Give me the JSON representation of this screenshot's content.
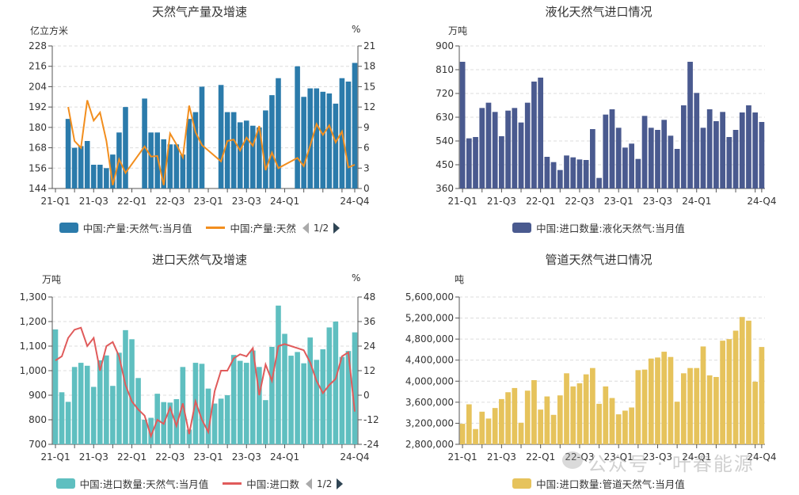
{
  "chart_data": [
    {
      "type": "bar+line",
      "title": "天然气产量及增速",
      "ylabel_left": "亿立方米",
      "ylabel_right": "%",
      "ylim_left": [
        144,
        228
      ],
      "yticks_left": [
        "144",
        "156",
        "168",
        "180",
        "192",
        "204",
        "216",
        "228"
      ],
      "ylim_right": [
        0,
        21
      ],
      "yticks_right": [
        "0",
        "3",
        "6",
        "9",
        "12",
        "15",
        "18",
        "21"
      ],
      "xtick_labels": [
        "21-Q1",
        "21-Q3",
        "22-Q1",
        "22-Q3",
        "23-Q1",
        "23-Q3",
        "24-Q1",
        "24-Q4"
      ],
      "slots": 48,
      "bar_slots": [
        2,
        3,
        4,
        5,
        6,
        7,
        8,
        9,
        10,
        11,
        14,
        15,
        16,
        17,
        18,
        19,
        20,
        21,
        22,
        23,
        26,
        27,
        28,
        29,
        30,
        31,
        32,
        33,
        34,
        35,
        38,
        39,
        40,
        41,
        42,
        43,
        44,
        45,
        46,
        47
      ],
      "series": [
        {
          "name": "中国:产量:天然气:当月值",
          "kind": "bar",
          "color": "#2b7bab",
          "values": [
            185,
            168,
            169,
            172,
            158,
            158,
            156,
            164,
            177,
            192,
            197,
            177,
            177,
            173,
            170,
            170,
            164,
            185,
            189,
            204,
            205,
            189,
            189,
            183,
            184,
            181,
            180,
            190,
            199,
            209,
            216,
            198,
            203,
            203,
            201,
            200,
            194,
            209,
            207,
            218
          ]
        },
        {
          "name": "中国:产量:天然",
          "kind": "line",
          "color": "#f28e1e",
          "values": [
            12,
            7,
            6,
            13,
            10,
            11.2,
            7,
            0.5,
            4.3,
            2.3,
            6.2,
            4.7,
            4.8,
            0.5,
            8.1,
            6.5,
            4.6,
            12.2,
            8.3,
            6.4,
            4,
            7,
            7.2,
            5.6,
            7.5,
            6.3,
            9.2,
            2.7,
            5.3,
            3,
            4.5,
            3.3,
            6.3,
            9.5,
            7.9,
            9.3,
            6.8,
            8.4,
            3.1,
            3.5
          ]
        }
      ],
      "legend_page": "1/2"
    },
    {
      "type": "bar",
      "title": "液化天然气进口情况",
      "ylabel": "万吨",
      "ylim": [
        360,
        900
      ],
      "yticks": [
        "360",
        "450",
        "540",
        "630",
        "720",
        "810",
        "900"
      ],
      "xtick_labels": [
        "21-Q1",
        "21-Q3",
        "22-Q1",
        "22-Q3",
        "23-Q1",
        "23-Q3",
        "24-Q1",
        "24-Q4"
      ],
      "series": [
        {
          "name": "中国:进口数量:液化天然气:当月值",
          "color": "#4a5a8f",
          "values": [
            840,
            550,
            555,
            665,
            685,
            650,
            558,
            655,
            665,
            610,
            685,
            765,
            780,
            480,
            460,
            430,
            485,
            478,
            470,
            468,
            585,
            400,
            640,
            660,
            590,
            515,
            530,
            472,
            635,
            590,
            582,
            620,
            560,
            510,
            675,
            840,
            722,
            590,
            660,
            615,
            650,
            555,
            582,
            648,
            675,
            648,
            612
          ]
        }
      ]
    },
    {
      "type": "bar+line",
      "title": "进口天然气及增速",
      "ylabel_left": "万吨",
      "ylabel_right": "%",
      "ylim_left": [
        700,
        1300
      ],
      "yticks_left": [
        "700",
        "800",
        "900",
        "1,000",
        "1,100",
        "1,200",
        "1,300"
      ],
      "ylim_right": [
        -24,
        48
      ],
      "yticks_right": [
        "-24",
        "-12",
        "0",
        "12",
        "24",
        "36",
        "48"
      ],
      "xtick_labels": [
        "21-Q1",
        "21-Q3",
        "22-Q1",
        "22-Q3",
        "23-Q1",
        "23-Q3",
        "24-Q1",
        "24-Q4"
      ],
      "series": [
        {
          "name": "中国:进口数量:天然气:当月值",
          "kind": "bar",
          "color": "#5fbfc0",
          "values": [
            1168,
            912,
            873,
            1015,
            1032,
            1020,
            934,
            1042,
            1062,
            938,
            1073,
            1165,
            1128,
            970,
            800,
            808,
            906,
            872,
            870,
            884,
            1015,
            760,
            1032,
            1028,
            927,
            866,
            886,
            900,
            1064,
            1040,
            1032,
            1082,
            1015,
            880,
            1097,
            1265,
            1150,
            1061,
            1076,
            1030,
            1135,
            1044,
            1087,
            1176,
            1200,
            1056,
            1080,
            1156
          ]
        },
        {
          "name": "中国:进口数",
          "kind": "line",
          "color": "#e05b5b",
          "values": [
            17,
            19,
            28,
            32,
            33,
            24,
            28,
            12,
            24,
            26,
            19,
            5,
            -3,
            -7,
            -10,
            -20,
            -12,
            -14,
            -6,
            -15,
            -4,
            -19,
            -3,
            -12,
            -18,
            2,
            12,
            12,
            18,
            20,
            19,
            23,
            0,
            15,
            7,
            24,
            25,
            24,
            23,
            22,
            16,
            7,
            1,
            5,
            8,
            19,
            21,
            -8
          ]
        }
      ],
      "legend_page": "1/2"
    },
    {
      "type": "bar",
      "title": "管道天然气进口情况",
      "ylabel": "吨",
      "ylim": [
        2800000,
        5600000
      ],
      "yticks": [
        "2,800,000",
        "3,200,000",
        "3,600,000",
        "4,000,000",
        "4,400,000",
        "4,800,000",
        "5,200,000",
        "5,600,000"
      ],
      "xtick_labels": [
        "21-Q1",
        "21-Q3",
        "22-Q1",
        "22-Q3",
        "23-Q1",
        "23-Q3",
        "24-Q1",
        "24-Q4"
      ],
      "series": [
        {
          "name": "中国:进口数量:管道天然气:当月值",
          "color": "#e6c35c",
          "values": [
            3190000,
            3560000,
            3090000,
            3420000,
            3290000,
            3490000,
            3660000,
            3790000,
            3870000,
            3210000,
            3820000,
            4020000,
            3460000,
            3710000,
            3360000,
            3730000,
            4150000,
            3900000,
            3960000,
            4130000,
            4250000,
            3570000,
            3900000,
            3680000,
            3370000,
            3440000,
            3500000,
            4210000,
            4220000,
            4430000,
            4450000,
            4560000,
            4460000,
            3610000,
            4150000,
            4250000,
            4250000,
            4660000,
            4110000,
            4080000,
            4770000,
            4800000,
            4960000,
            5220000,
            5150000,
            3990000,
            4650000
          ]
        }
      ]
    }
  ],
  "watermark": "公众号 · 叶春能源"
}
